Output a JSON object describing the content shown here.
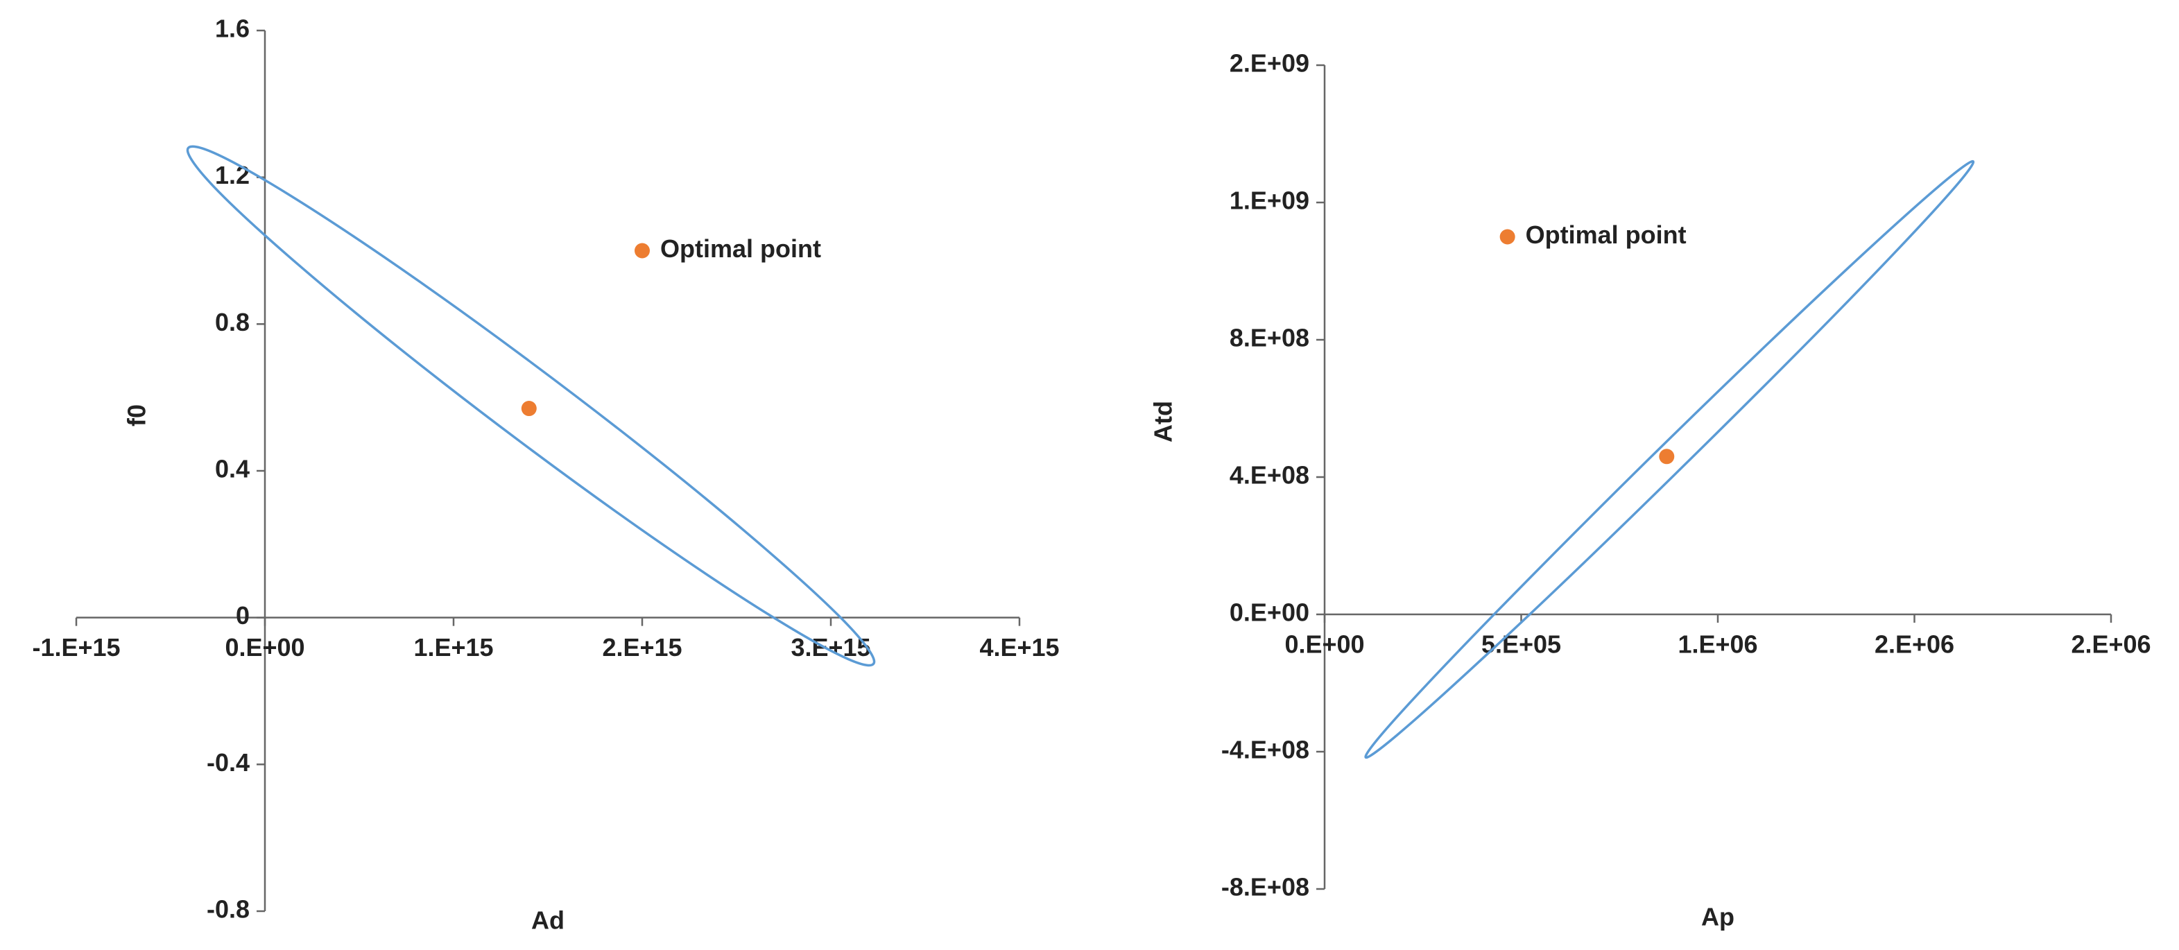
{
  "chart_data": [
    {
      "type": "scatter",
      "x_label": "Ad",
      "y_label": "f0",
      "xlim": [
        -1000000000000000.0,
        4000000000000000.0
      ],
      "xticks": [
        {
          "value": -1000000000000000.0,
          "label": "-1.E+15"
        },
        {
          "value": 0,
          "label": "0.E+00"
        },
        {
          "value": 1000000000000000.0,
          "label": "1.E+15"
        },
        {
          "value": 2000000000000000.0,
          "label": "2.E+15"
        },
        {
          "value": 3000000000000000.0,
          "label": "3.E+15"
        },
        {
          "value": 4000000000000000.0,
          "label": "4.E+15"
        }
      ],
      "ylim": [
        -0.8,
        1.6
      ],
      "yticks": [
        -0.8,
        -0.4,
        0,
        0.4,
        0.8,
        1.2,
        1.6
      ],
      "grid": false,
      "series": [
        {
          "mode": "line",
          "color": "#5b9bd5",
          "x": [
            3230000000000000.0,
            3092000000000000.0,
            2697000000000000.0,
            2107000000000000.0,
            1410000000000000.0,
            713000000000000.0,
            123000000000000.0,
            -272000000000000.0,
            -410000000000000.0,
            -272000000000000.0,
            123000000000000.0,
            713000000000000.0,
            1410000000000000.0,
            2107000000000000.0,
            2697000000000000.0,
            3092000000000000.0,
            3230000000000000.0
          ],
          "y": [
            -0.12,
            -0.021,
            0.168,
            0.42,
            0.696,
            0.954,
            1.154,
            1.267,
            1.274,
            1.175,
            0.986,
            0.734,
            0.458,
            0.2,
            0.0,
            -0.113,
            -0.12
          ]
        },
        {
          "mode": "markers",
          "color": "#ed7d31",
          "x": [
            1400000000000000.0
          ],
          "y": [
            0.57
          ]
        },
        {
          "mode": "markers",
          "name": "Optimal point",
          "color": "#ed7d31",
          "x": [
            2000000000000000.0
          ],
          "y": [
            1.0
          ]
        }
      ]
    },
    {
      "type": "scatter",
      "x_label": "Ap",
      "y_label": "Atd",
      "xlim": [
        0,
        2000000.0
      ],
      "xticks": [
        {
          "value": 0,
          "label": "0.E+00"
        },
        {
          "value": 500000.0,
          "label": "5.E+05"
        },
        {
          "value": 1000000.0,
          "label": "1.E+06"
        },
        {
          "value": 1500000.0,
          "label": "2.E+06"
        },
        {
          "value": 2000000.0,
          "label": "2.E+06"
        }
      ],
      "ylim": [
        -800000000.0,
        1600000000.0
      ],
      "yticks": [
        {
          "value": -800000000.0,
          "label": "-8.E+08"
        },
        {
          "value": -400000000.0,
          "label": "-4.E+08"
        },
        {
          "value": 0,
          "label": "0.E+00"
        },
        {
          "value": 400000000.0,
          "label": "4.E+08"
        },
        {
          "value": 800000000.0,
          "label": "8.E+08"
        },
        {
          "value": 1200000000.0,
          "label": "1.E+09"
        },
        {
          "value": 1600000000.0,
          "label": "2.E+09"
        }
      ],
      "grid": false,
      "series": [
        {
          "mode": "line",
          "color": "#5b9bd5",
          "x": [
            1648000.0,
            1610000.0,
            1460000.0,
            1221000.0,
            930000.0,
            631000.0,
            369000.0,
            185000.0,
            106000.0,
            144000.0,
            294000.0,
            533000.0,
            824000.0,
            1123000.0,
            1385000.0,
            1569000.0,
            1648000.0
          ],
          "y": [
            1320000000.0,
            1254000000.0,
            1066000000.0,
            784000000.0,
            452000000.0,
            119000000.0,
            -163000000.0,
            -351000000.0,
            -417000000.0,
            -351000000.0,
            -163000000.0,
            119000000.0,
            452000000.0,
            784000000.0,
            1066000000.0,
            1254000000.0,
            1320000000.0
          ]
        },
        {
          "mode": "markers",
          "color": "#ed7d31",
          "x": [
            870000.0
          ],
          "y": [
            460000000.0
          ]
        },
        {
          "mode": "markers",
          "name": "Optimal point",
          "color": "#ed7d31",
          "x": [
            465000.0
          ],
          "y": [
            1100000000.0
          ]
        }
      ]
    }
  ]
}
